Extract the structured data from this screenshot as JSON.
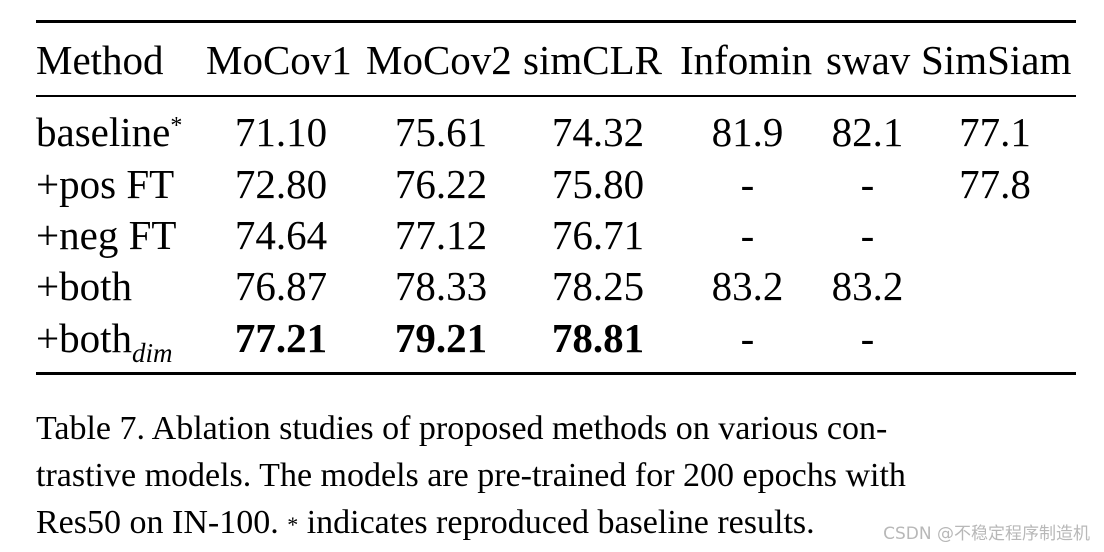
{
  "table": {
    "headers": [
      "Method",
      "MoCov1",
      "MoCov2",
      "simCLR",
      "Infomin",
      "swav",
      "SimSiam"
    ],
    "rows": [
      {
        "method": "baseline",
        "method_sup": "*",
        "method_sub": "",
        "values": [
          "71.10",
          "75.61",
          "74.32",
          "81.9",
          "82.1",
          "77.1"
        ],
        "bold": [
          false,
          false,
          false,
          false,
          false,
          false
        ]
      },
      {
        "method": "+pos FT",
        "method_sup": "",
        "method_sub": "",
        "values": [
          "72.80",
          "76.22",
          "75.80",
          "-",
          "-",
          "77.8"
        ],
        "bold": [
          false,
          false,
          false,
          false,
          false,
          false
        ]
      },
      {
        "method": "+neg FT",
        "method_sup": "",
        "method_sub": "",
        "values": [
          "74.64",
          "77.12",
          "76.71",
          "-",
          "-",
          ""
        ],
        "bold": [
          false,
          false,
          false,
          false,
          false,
          false
        ]
      },
      {
        "method": "+both",
        "method_sup": "",
        "method_sub": "",
        "values": [
          "76.87",
          "78.33",
          "78.25",
          "83.2",
          "83.2",
          ""
        ],
        "bold": [
          false,
          false,
          false,
          false,
          false,
          false
        ]
      },
      {
        "method": "+both",
        "method_sup": "",
        "method_sub": "dim",
        "values": [
          "77.21",
          "79.21",
          "78.81",
          "-",
          "-",
          ""
        ],
        "bold": [
          true,
          true,
          true,
          false,
          false,
          false
        ]
      }
    ]
  },
  "caption": {
    "line1": "Table 7.   Ablation studies of proposed methods on various con-",
    "line2": "trastive models.  The models are pre-trained for 200 epochs with",
    "line3a": "Res50 on IN-100. ",
    "line3_sup": "*",
    "line3b": " indicates reproduced baseline results."
  },
  "watermark": "CSDN @不稳定程序制造机"
}
